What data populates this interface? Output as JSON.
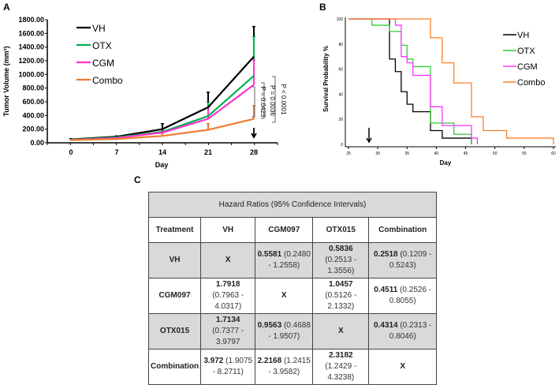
{
  "panels": {
    "a": "A",
    "b": "B",
    "c": "C"
  },
  "chart_data": [
    {
      "type": "line",
      "title": "",
      "xlabel": "Day",
      "ylabel": "Tumor Volume (mm³)",
      "ylim": [
        0,
        1800
      ],
      "x": [
        0,
        7,
        14,
        21,
        28
      ],
      "yticks": [
        "0.00",
        "200.00",
        "400.00",
        "600.00",
        "800.00",
        "1000.00",
        "1200.00",
        "1400.00",
        "1600.00",
        "1800.00"
      ],
      "series": [
        {
          "name": "VH",
          "color": "#000000",
          "values": [
            50,
            90,
            200,
            520,
            1260
          ],
          "err_upper": [
            60,
            100,
            280,
            740,
            1700
          ]
        },
        {
          "name": "OTX",
          "color": "#00b050",
          "values": [
            45,
            80,
            160,
            390,
            980
          ],
          "err_upper": [
            50,
            85,
            180,
            590,
            1550
          ]
        },
        {
          "name": "CGM",
          "color": "#ff33cc",
          "values": [
            40,
            70,
            150,
            350,
            850
          ],
          "err_upper": [
            45,
            75,
            200,
            520,
            1210
          ]
        },
        {
          "name": "Combo",
          "color": "#ed7d31",
          "values": [
            40,
            55,
            100,
            190,
            350
          ],
          "err_upper": [
            45,
            60,
            140,
            280,
            545
          ]
        }
      ],
      "annotations": [
        "P < 0.0001",
        "P = 0.0036",
        "P = 0.0423"
      ],
      "arrow_day": 28,
      "legend": "top-left"
    },
    {
      "type": "line",
      "title": "",
      "xlabel": "Day",
      "ylabel": "Survival Probability %",
      "xlim": [
        25,
        60
      ],
      "ylim": [
        0,
        100
      ],
      "xticks": [
        25,
        30,
        35,
        40,
        45,
        50,
        55,
        60
      ],
      "yticks": [
        0,
        20,
        40,
        60,
        80,
        100
      ],
      "series": [
        {
          "name": "VH",
          "color": "#000000",
          "steps": [
            [
              25,
              100
            ],
            [
              32,
              68
            ],
            [
              33,
              58
            ],
            [
              34,
              42
            ],
            [
              35,
              32
            ],
            [
              36,
              26
            ],
            [
              39,
              11
            ],
            [
              41,
              5
            ],
            [
              46,
              0
            ]
          ]
        },
        {
          "name": "OTX",
          "color": "#33cc33",
          "steps": [
            [
              25,
              100
            ],
            [
              29,
              95
            ],
            [
              32,
              90
            ],
            [
              34,
              79
            ],
            [
              35,
              68
            ],
            [
              36,
              62
            ],
            [
              39,
              17
            ],
            [
              43,
              8
            ],
            [
              46,
              0
            ]
          ]
        },
        {
          "name": "CGM",
          "color": "#ff33ff",
          "steps": [
            [
              25,
              100
            ],
            [
              33,
              95
            ],
            [
              34,
              70
            ],
            [
              35,
              65
            ],
            [
              36,
              55
            ],
            [
              39,
              30
            ],
            [
              41,
              15
            ],
            [
              46,
              5
            ],
            [
              47,
              0
            ]
          ]
        },
        {
          "name": "Combo",
          "color": "#ff7f27",
          "steps": [
            [
              25,
              100
            ],
            [
              39,
              85
            ],
            [
              41,
              65
            ],
            [
              43,
              49
            ],
            [
              46,
              22
            ],
            [
              48,
              11
            ],
            [
              52,
              5
            ],
            [
              60,
              0
            ]
          ]
        }
      ],
      "arrow_day": 28.5,
      "legend": "right"
    }
  ],
  "table": {
    "title": "Hazard Ratios (95% Confidence Intervals)",
    "headers": [
      "Treatment",
      "VH",
      "CGM097",
      "OTX015",
      "Combination"
    ],
    "rows": [
      {
        "label": "VH",
        "cells": [
          {
            "x": "X"
          },
          {
            "hr": "0.5581",
            "ci": " (0.2480 - 1.2558)"
          },
          {
            "hr": "0.5836",
            "ci": " (0.2513 - 1.3556)"
          },
          {
            "hr": "0.2518",
            "ci": " (0.1209 - 0.5243)"
          }
        ]
      },
      {
        "label": "CGM097",
        "cells": [
          {
            "hr": "1.7918",
            "ci": "  (0.7963 - 4.0317)"
          },
          {
            "x": "X"
          },
          {
            "hr": "1.0457",
            "ci": " (0.5126 - 2.1332)"
          },
          {
            "hr": "0.4511",
            "ci": " (0.2526 - 0.8055)"
          }
        ]
      },
      {
        "label": "OTX015",
        "cells": [
          {
            "hr": "1.7134",
            "ci": " (0.7377 - 3.9797"
          },
          {
            "hr": "0.9563",
            "ci": " (0.4688 - 1.9507)"
          },
          {
            "x": "X"
          },
          {
            "hr": "0.4314",
            "ci": " (0.2313 - 0.8046)"
          }
        ]
      },
      {
        "label": "Combination",
        "cells": [
          {
            "hr": "3.972",
            "ci": " (1.9075 - 8.2711)"
          },
          {
            "hr": "2.2168",
            "ci": " (1.2415 - 3.9582)"
          },
          {
            "hr": "2.3182",
            "ci": " (1.2429 - 4.3238)"
          },
          {
            "x": "X"
          }
        ]
      }
    ]
  }
}
